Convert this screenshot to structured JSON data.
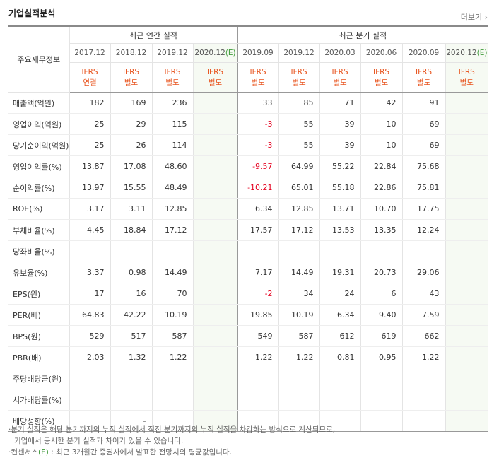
{
  "header": {
    "title": "기업실적분석",
    "more": "더보기"
  },
  "table": {
    "corner": "주요재무정보",
    "groups": [
      "최근 연간 실적",
      "최근 분기 실적"
    ],
    "columns": [
      {
        "period": "2017.12",
        "ifrs": "IFRS",
        "basis": "연결"
      },
      {
        "period": "2018.12",
        "ifrs": "IFRS",
        "basis": "별도"
      },
      {
        "period": "2019.12",
        "ifrs": "IFRS",
        "basis": "별도"
      },
      {
        "period": "2020.12",
        "est": "(E)",
        "ifrs": "IFRS",
        "basis": "별도"
      },
      {
        "period": "2019.09",
        "ifrs": "IFRS",
        "basis": "별도"
      },
      {
        "period": "2019.12",
        "ifrs": "IFRS",
        "basis": "별도"
      },
      {
        "period": "2020.03",
        "ifrs": "IFRS",
        "basis": "별도"
      },
      {
        "period": "2020.06",
        "ifrs": "IFRS",
        "basis": "별도"
      },
      {
        "period": "2020.09",
        "ifrs": "IFRS",
        "basis": "별도"
      },
      {
        "period": "2020.12",
        "est": "(E)",
        "ifrs": "IFRS",
        "basis": "별도"
      }
    ],
    "sections": [
      [
        {
          "label": "매출액(억원)",
          "values": [
            "182",
            "169",
            "236",
            null,
            "33",
            "85",
            "71",
            "42",
            "91",
            null
          ]
        },
        {
          "label": "영업이익(억원)",
          "values": [
            "25",
            "29",
            "115",
            null,
            "-3",
            "55",
            "39",
            "10",
            "69",
            null
          ]
        },
        {
          "label": "당기순이익(억원)",
          "values": [
            "25",
            "26",
            "114",
            null,
            "-3",
            "55",
            "39",
            "10",
            "69",
            null
          ]
        }
      ],
      [
        {
          "label": "영업이익률(%)",
          "values": [
            "13.87",
            "17.08",
            "48.60",
            null,
            "-9.57",
            "64.99",
            "55.22",
            "22.84",
            "75.68",
            null
          ]
        },
        {
          "label": "순이익률(%)",
          "values": [
            "13.97",
            "15.55",
            "48.49",
            null,
            "-10.21",
            "65.01",
            "55.18",
            "22.86",
            "75.81",
            null
          ]
        },
        {
          "label": "ROE(%)",
          "values": [
            "3.17",
            "3.11",
            "12.85",
            null,
            "6.34",
            "12.85",
            "13.71",
            "10.70",
            "17.75",
            null
          ]
        }
      ],
      [
        {
          "label": "부채비율(%)",
          "values": [
            "4.45",
            "18.84",
            "17.12",
            null,
            "17.57",
            "17.12",
            "13.53",
            "13.35",
            "12.24",
            null
          ]
        },
        {
          "label": "당좌비율(%)",
          "values": [
            null,
            null,
            null,
            null,
            null,
            null,
            null,
            null,
            null,
            null
          ]
        },
        {
          "label": "유보율(%)",
          "values": [
            "3.37",
            "0.98",
            "14.49",
            null,
            "7.17",
            "14.49",
            "19.31",
            "20.73",
            "29.06",
            null
          ]
        }
      ],
      [
        {
          "label": "EPS(원)",
          "values": [
            "17",
            "16",
            "70",
            null,
            "-2",
            "34",
            "24",
            "6",
            "43",
            null
          ]
        },
        {
          "label": "PER(배)",
          "values": [
            "64.83",
            "42.22",
            "10.19",
            null,
            "19.85",
            "10.19",
            "6.34",
            "9.40",
            "7.59",
            null
          ]
        },
        {
          "label": "BPS(원)",
          "values": [
            "529",
            "517",
            "587",
            null,
            "549",
            "587",
            "612",
            "619",
            "662",
            null
          ]
        },
        {
          "label": "PBR(배)",
          "values": [
            "2.03",
            "1.32",
            "1.22",
            null,
            "1.22",
            "1.22",
            "0.81",
            "0.95",
            "1.22",
            null
          ]
        }
      ],
      [
        {
          "label": "주당배당금(원)",
          "values": [
            null,
            null,
            null,
            null,
            null,
            null,
            null,
            null,
            null,
            null
          ]
        },
        {
          "label": "시가배당률(%)",
          "values": [
            null,
            null,
            null,
            null,
            null,
            null,
            null,
            null,
            null,
            null
          ]
        },
        {
          "label": "배당성향(%)",
          "values": [
            null,
            "-",
            null,
            null,
            null,
            null,
            null,
            null,
            null,
            null
          ]
        }
      ]
    ]
  },
  "notes": {
    "quarterly": [
      "분기 실적은 해당 분기까지의 누적 실적에서 직전 분기까지의 누적 실적을 차감하는 방식으로 계산되므로,",
      "기업에서 공시한 분기 실적과 차이가 있을 수 있습니다."
    ],
    "consensus": {
      "term": "컨센서스",
      "mark": "(E)",
      "text": ": 최근 3개월간 증권사에서 발표한 전망치의 평균값입니다."
    }
  }
}
